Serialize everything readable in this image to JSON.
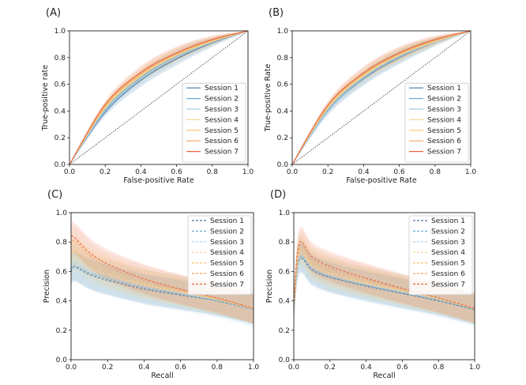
{
  "colors": [
    "#4c78a8",
    "#6aaed6",
    "#a6cee3",
    "#f2d99a",
    "#f7c36a",
    "#f4a46a",
    "#e8643c"
  ],
  "chart_data": [
    {
      "type": "line",
      "panel_label": "(A)",
      "xlabel": "False-positive Rate",
      "ylabel": "True-positive rate",
      "xlim": [
        0,
        1
      ],
      "ylim": [
        0,
        1
      ],
      "xticks": [
        "0.0",
        "0.2",
        "0.4",
        "0.6",
        "0.8",
        "1.0"
      ],
      "yticks": [
        "0.0",
        "0.2",
        "0.4",
        "0.6",
        "0.8",
        "1.0"
      ],
      "legend": "lower-right",
      "diagonal": true,
      "series": [
        {
          "name": "Session 1",
          "style": "solid",
          "x": [
            0,
            0.2,
            0.4,
            0.6,
            0.8,
            1.0
          ],
          "y": [
            0,
            0.39,
            0.63,
            0.79,
            0.91,
            1.0
          ],
          "band": 0.05
        },
        {
          "name": "Session 2",
          "style": "solid",
          "x": [
            0,
            0.2,
            0.4,
            0.6,
            0.8,
            1.0
          ],
          "y": [
            0,
            0.41,
            0.65,
            0.81,
            0.92,
            1.0
          ],
          "band": 0.05
        },
        {
          "name": "Session 3",
          "style": "solid",
          "x": [
            0,
            0.2,
            0.4,
            0.6,
            0.8,
            1.0
          ],
          "y": [
            0,
            0.4,
            0.64,
            0.8,
            0.915,
            1.0
          ],
          "band": 0.06
        },
        {
          "name": "Session 4",
          "style": "solid",
          "x": [
            0,
            0.2,
            0.4,
            0.6,
            0.8,
            1.0
          ],
          "y": [
            0,
            0.42,
            0.66,
            0.815,
            0.92,
            1.0
          ],
          "band": 0.05
        },
        {
          "name": "Session 5",
          "style": "solid",
          "x": [
            0,
            0.2,
            0.4,
            0.6,
            0.8,
            1.0
          ],
          "y": [
            0,
            0.43,
            0.67,
            0.82,
            0.925,
            1.0
          ],
          "band": 0.05
        },
        {
          "name": "Session 6",
          "style": "solid",
          "x": [
            0,
            0.2,
            0.4,
            0.6,
            0.8,
            1.0
          ],
          "y": [
            0,
            0.44,
            0.68,
            0.83,
            0.93,
            1.0
          ],
          "band": 0.05
        },
        {
          "name": "Session 7",
          "style": "solid",
          "x": [
            0,
            0.2,
            0.4,
            0.6,
            0.8,
            1.0
          ],
          "y": [
            0,
            0.45,
            0.69,
            0.835,
            0.935,
            1.0
          ],
          "band": 0.05
        }
      ]
    },
    {
      "type": "line",
      "panel_label": "(B)",
      "xlabel": "False-positive Rate",
      "ylabel": "True-positive Rate",
      "xlim": [
        0,
        1
      ],
      "ylim": [
        0,
        1
      ],
      "xticks": [
        "0.0",
        "0.2",
        "0.4",
        "0.6",
        "0.8",
        "1.0"
      ],
      "yticks": [
        "0.0",
        "0.2",
        "0.4",
        "0.6",
        "0.8",
        "1.0"
      ],
      "legend": "lower-right",
      "diagonal": true,
      "series": [
        {
          "name": "Session 1",
          "style": "solid",
          "x": [
            0,
            0.2,
            0.4,
            0.6,
            0.8,
            1.0
          ],
          "y": [
            0,
            0.4,
            0.64,
            0.8,
            0.915,
            1.0
          ],
          "band": 0.05
        },
        {
          "name": "Session 2",
          "style": "solid",
          "x": [
            0,
            0.2,
            0.4,
            0.6,
            0.8,
            1.0
          ],
          "y": [
            0,
            0.41,
            0.65,
            0.81,
            0.92,
            1.0
          ],
          "band": 0.05
        },
        {
          "name": "Session 3",
          "style": "solid",
          "x": [
            0,
            0.2,
            0.4,
            0.6,
            0.8,
            1.0
          ],
          "y": [
            0,
            0.4,
            0.645,
            0.805,
            0.915,
            1.0
          ],
          "band": 0.06
        },
        {
          "name": "Session 4",
          "style": "solid",
          "x": [
            0,
            0.2,
            0.4,
            0.6,
            0.8,
            1.0
          ],
          "y": [
            0,
            0.42,
            0.66,
            0.815,
            0.92,
            1.0
          ],
          "band": 0.05
        },
        {
          "name": "Session 5",
          "style": "solid",
          "x": [
            0,
            0.2,
            0.4,
            0.6,
            0.8,
            1.0
          ],
          "y": [
            0,
            0.43,
            0.67,
            0.82,
            0.925,
            1.0
          ],
          "band": 0.05
        },
        {
          "name": "Session 6",
          "style": "solid",
          "x": [
            0,
            0.2,
            0.4,
            0.6,
            0.8,
            1.0
          ],
          "y": [
            0,
            0.44,
            0.68,
            0.83,
            0.93,
            1.0
          ],
          "band": 0.05
        },
        {
          "name": "Session 7",
          "style": "solid",
          "x": [
            0,
            0.2,
            0.4,
            0.6,
            0.8,
            1.0
          ],
          "y": [
            0,
            0.445,
            0.685,
            0.835,
            0.935,
            1.0
          ],
          "band": 0.05
        }
      ]
    },
    {
      "type": "line",
      "panel_label": "(C)",
      "xlabel": "Recall",
      "ylabel": "Precision",
      "xlim": [
        0,
        1
      ],
      "ylim": [
        0,
        1
      ],
      "xticks": [
        "0.0",
        "0.2",
        "0.4",
        "0.6",
        "0.8",
        "1.0"
      ],
      "yticks": [
        "0.0",
        "0.2",
        "0.4",
        "0.6",
        "0.8",
        "1.0"
      ],
      "legend": "upper-right",
      "diagonal": false,
      "series": [
        {
          "name": "Session 1",
          "style": "dashed",
          "x": [
            0,
            0.02,
            0.1,
            0.2,
            0.4,
            0.6,
            0.8,
            1.0
          ],
          "y": [
            0.6,
            0.63,
            0.58,
            0.54,
            0.48,
            0.44,
            0.4,
            0.34
          ],
          "band": 0.1
        },
        {
          "name": "Session 2",
          "style": "dashed",
          "x": [
            0,
            0.02,
            0.1,
            0.2,
            0.4,
            0.6,
            0.8,
            1.0
          ],
          "y": [
            0.62,
            0.64,
            0.59,
            0.55,
            0.49,
            0.445,
            0.4,
            0.34
          ],
          "band": 0.1
        },
        {
          "name": "Session 3",
          "style": "dashed",
          "x": [
            0,
            0.02,
            0.1,
            0.2,
            0.4,
            0.6,
            0.8,
            1.0
          ],
          "y": [
            0.63,
            0.66,
            0.6,
            0.56,
            0.495,
            0.45,
            0.405,
            0.34
          ],
          "band": 0.12
        },
        {
          "name": "Session 4",
          "style": "dashed",
          "x": [
            0,
            0.02,
            0.1,
            0.2,
            0.4,
            0.6,
            0.8,
            1.0
          ],
          "y": [
            0.66,
            0.7,
            0.63,
            0.58,
            0.51,
            0.46,
            0.41,
            0.345
          ],
          "band": 0.1
        },
        {
          "name": "Session 5",
          "style": "dashed",
          "x": [
            0,
            0.02,
            0.1,
            0.2,
            0.4,
            0.6,
            0.8,
            1.0
          ],
          "y": [
            0.7,
            0.74,
            0.66,
            0.6,
            0.52,
            0.465,
            0.41,
            0.345
          ],
          "band": 0.1
        },
        {
          "name": "Session 6",
          "style": "dashed",
          "x": [
            0,
            0.02,
            0.1,
            0.2,
            0.4,
            0.6,
            0.8,
            1.0
          ],
          "y": [
            0.78,
            0.81,
            0.71,
            0.63,
            0.54,
            0.475,
            0.415,
            0.345
          ],
          "band": 0.1
        },
        {
          "name": "Session 7",
          "style": "dashed",
          "x": [
            0,
            0.02,
            0.1,
            0.2,
            0.4,
            0.6,
            0.8,
            1.0
          ],
          "y": [
            0.84,
            0.83,
            0.73,
            0.65,
            0.55,
            0.48,
            0.42,
            0.35
          ],
          "band": 0.1
        }
      ]
    },
    {
      "type": "line",
      "panel_label": "(D)",
      "xlabel": "Recall",
      "ylabel": "Precision",
      "xlim": [
        0,
        1
      ],
      "ylim": [
        0,
        1
      ],
      "xticks": [
        "0.0",
        "0.2",
        "0.4",
        "0.6",
        "0.8",
        "1.0"
      ],
      "yticks": [
        "0.0",
        "0.2",
        "0.4",
        "0.6",
        "0.8",
        "1.0"
      ],
      "legend": "upper-right",
      "diagonal": false,
      "series": [
        {
          "name": "Session 1",
          "style": "dashed",
          "x": [
            0,
            0.03,
            0.1,
            0.2,
            0.4,
            0.6,
            0.8,
            1.0
          ],
          "y": [
            0.35,
            0.68,
            0.61,
            0.56,
            0.5,
            0.45,
            0.4,
            0.34
          ],
          "band": 0.1
        },
        {
          "name": "Session 2",
          "style": "dashed",
          "x": [
            0,
            0.03,
            0.1,
            0.2,
            0.4,
            0.6,
            0.8,
            1.0
          ],
          "y": [
            0.35,
            0.69,
            0.62,
            0.565,
            0.505,
            0.455,
            0.405,
            0.34
          ],
          "band": 0.1
        },
        {
          "name": "Session 3",
          "style": "dashed",
          "x": [
            0,
            0.03,
            0.1,
            0.2,
            0.4,
            0.6,
            0.8,
            1.0
          ],
          "y": [
            0.35,
            0.7,
            0.62,
            0.57,
            0.51,
            0.46,
            0.41,
            0.345
          ],
          "band": 0.12
        },
        {
          "name": "Session 4",
          "style": "dashed",
          "x": [
            0,
            0.03,
            0.1,
            0.2,
            0.4,
            0.6,
            0.8,
            1.0
          ],
          "y": [
            0.36,
            0.72,
            0.64,
            0.585,
            0.52,
            0.465,
            0.41,
            0.345
          ],
          "band": 0.1
        },
        {
          "name": "Session 5",
          "style": "dashed",
          "x": [
            0,
            0.03,
            0.1,
            0.2,
            0.4,
            0.6,
            0.8,
            1.0
          ],
          "y": [
            0.36,
            0.74,
            0.66,
            0.6,
            0.53,
            0.47,
            0.415,
            0.345
          ],
          "band": 0.1
        },
        {
          "name": "Session 6",
          "style": "dashed",
          "x": [
            0,
            0.03,
            0.1,
            0.2,
            0.4,
            0.6,
            0.8,
            1.0
          ],
          "y": [
            0.37,
            0.77,
            0.68,
            0.62,
            0.545,
            0.48,
            0.42,
            0.35
          ],
          "band": 0.1
        },
        {
          "name": "Session 7",
          "style": "dashed",
          "x": [
            0,
            0.03,
            0.1,
            0.2,
            0.4,
            0.6,
            0.8,
            1.0
          ],
          "y": [
            0.37,
            0.79,
            0.7,
            0.635,
            0.555,
            0.485,
            0.42,
            0.35
          ],
          "band": 0.1
        }
      ]
    }
  ]
}
